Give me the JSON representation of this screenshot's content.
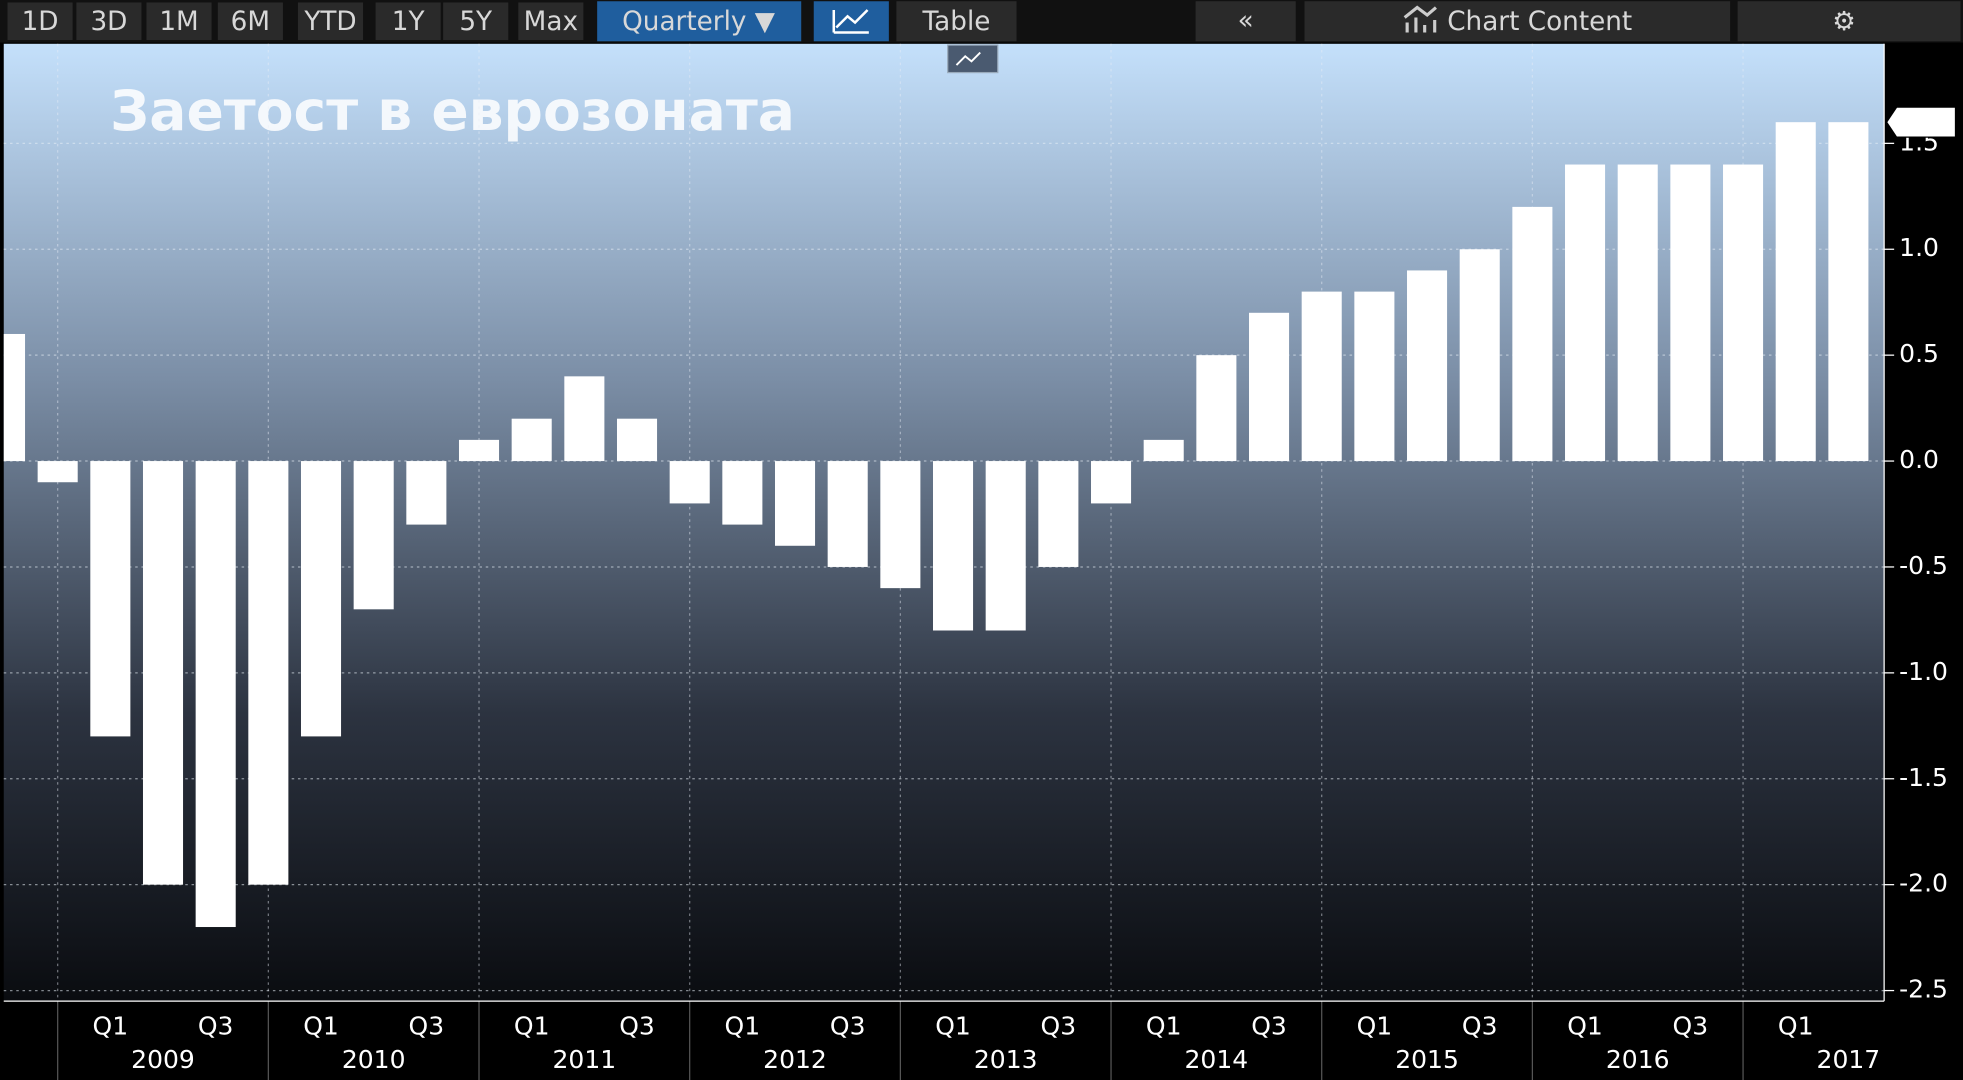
{
  "toolbar": {
    "ranges": [
      "1D",
      "3D",
      "1M",
      "6M",
      "YTD",
      "1Y",
      "5Y",
      "Max"
    ],
    "frequency": "Quarterly ▼",
    "table": "Table",
    "collapse": "«",
    "chart_content": "Chart Content",
    "settings": "⚙"
  },
  "chart_data": {
    "type": "bar",
    "title": "Заетост в еврозоната",
    "color": "#ffffff",
    "categories": [
      null,
      null,
      "Q1",
      null,
      "Q3",
      null,
      "Q1",
      null,
      "Q3",
      null,
      "Q1",
      null,
      "Q3",
      null,
      "Q1",
      null,
      "Q3",
      null,
      "Q1",
      null,
      "Q3",
      null,
      "Q1",
      null,
      "Q3",
      null,
      "Q1",
      null,
      "Q3",
      null,
      "Q1",
      null,
      "Q3",
      null,
      "Q1",
      null
    ],
    "year_labels": [
      "2009",
      "2010",
      "2011",
      "2012",
      "2013",
      "2014",
      "2015",
      "2016",
      "2017"
    ],
    "values": [
      0.6,
      -0.1,
      -1.3,
      -2.0,
      -2.2,
      -2.0,
      -1.3,
      -0.7,
      -0.3,
      0.1,
      0.2,
      0.4,
      0.2,
      -0.2,
      -0.3,
      -0.4,
      -0.5,
      -0.6,
      -0.8,
      -0.8,
      -0.5,
      -0.2,
      0.1,
      0.5,
      0.7,
      0.8,
      0.8,
      0.9,
      1.0,
      1.2,
      1.4,
      1.4,
      1.4,
      1.4,
      1.6,
      1.6
    ],
    "last_value": 1.6,
    "ylim": [
      -2.55,
      1.97
    ],
    "yticks": [
      -2.5,
      {
        "value": -2,
        "label": "-2.0"
      },
      -1.5,
      {
        "value": -1,
        "label": "-1.0"
      },
      -0.5,
      {
        "value": 0,
        "label": "0.0"
      },
      0.5,
      {
        "value": 1,
        "label": "1.0"
      },
      1.5
    ],
    "grid": true
  }
}
